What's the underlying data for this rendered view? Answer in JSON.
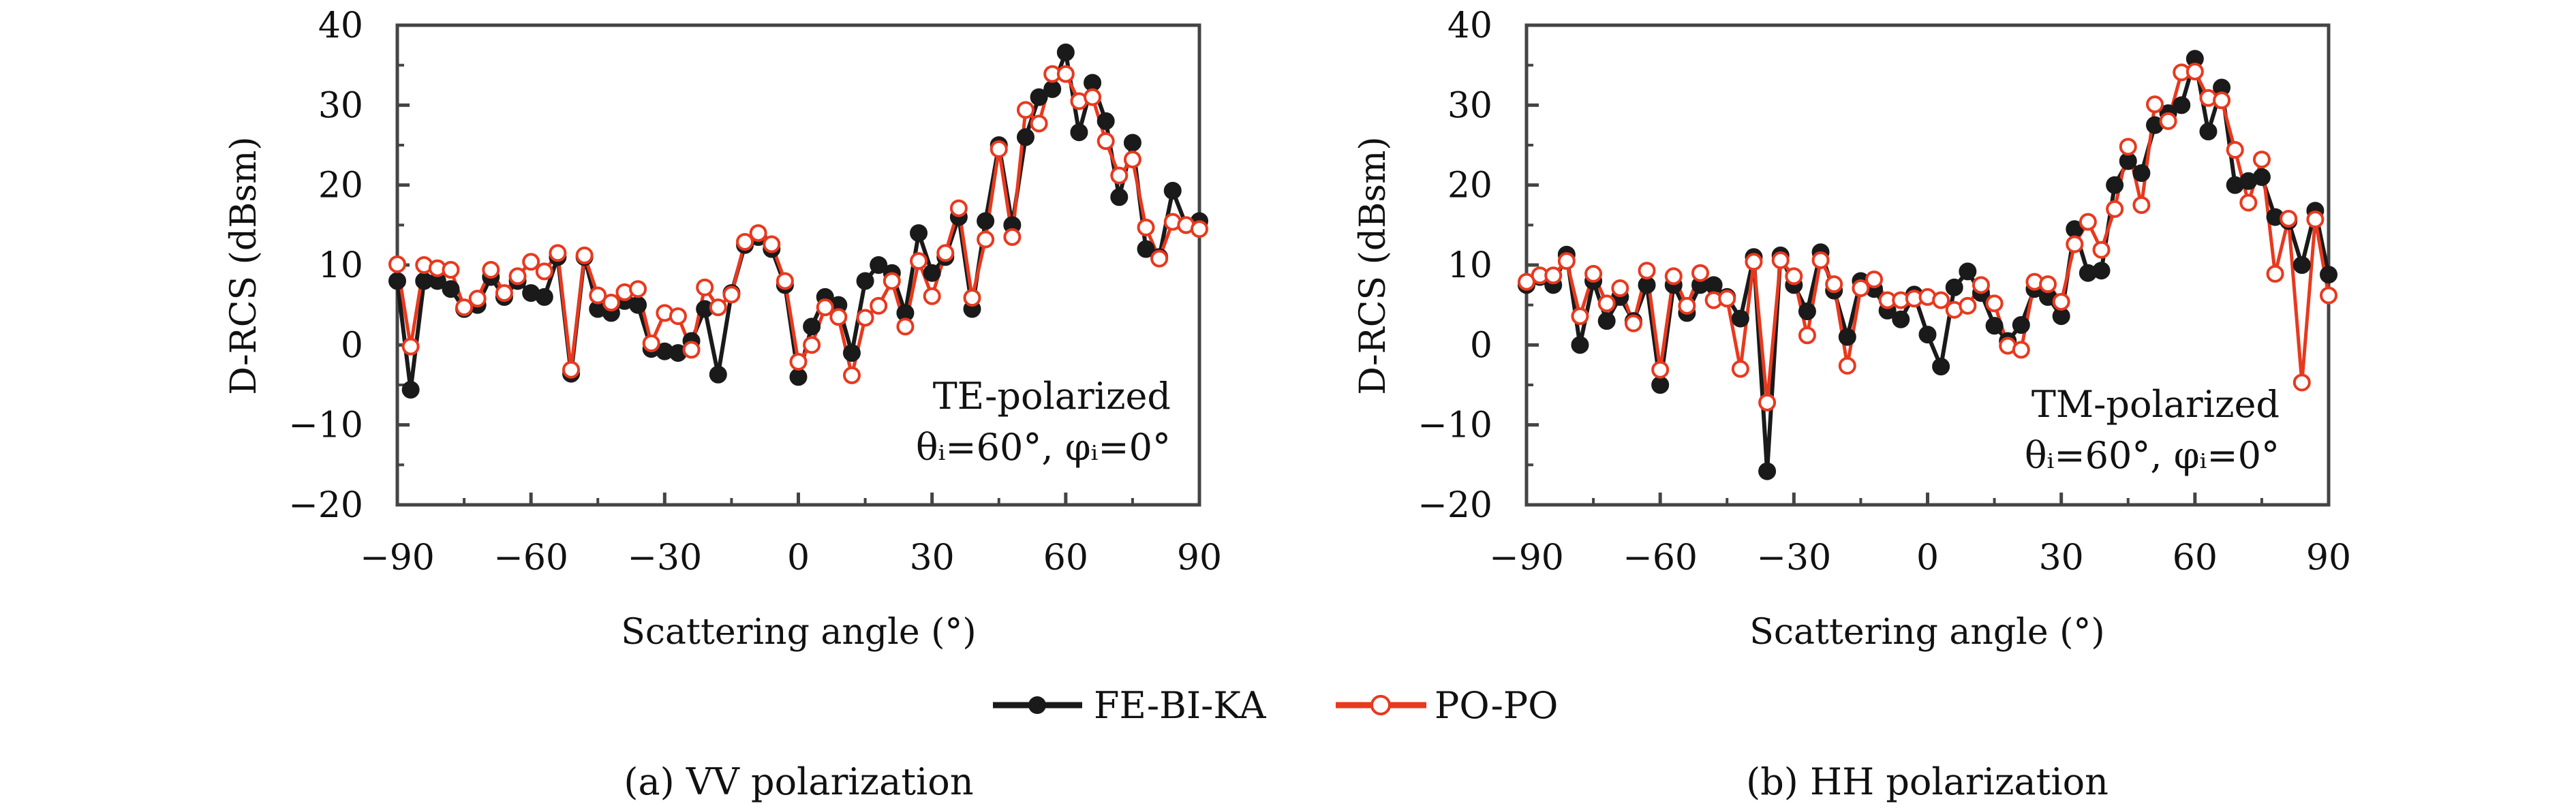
{
  "legend": {
    "items": [
      {
        "label": "FE-BI-KA",
        "color": "#1a1a1a",
        "marker": "filled-circle"
      },
      {
        "label": "PO-PO",
        "color": "#e8391e",
        "marker": "open-circle"
      }
    ]
  },
  "chart_data": [
    {
      "type": "line",
      "caption": "(a) VV polarization",
      "annotation_lines": [
        "TE-polarized",
        "θᵢ=60°, φᵢ=0°"
      ],
      "xlabel": "Scattering angle (°)",
      "ylabel": "D-RCS (dBsm)",
      "xlim": [
        -90,
        90
      ],
      "ylim": [
        -20,
        40
      ],
      "xticks": [
        -90,
        -60,
        -30,
        0,
        30,
        60,
        90
      ],
      "yticks": [
        -20,
        -10,
        0,
        10,
        20,
        30,
        40
      ],
      "grid": false,
      "x": [
        -90,
        -87,
        -84,
        -81,
        -78,
        -75,
        -72,
        -69,
        -66,
        -63,
        -60,
        -57,
        -54,
        -51,
        -48,
        -45,
        -42,
        -39,
        -36,
        -33,
        -30,
        -27,
        -24,
        -21,
        -18,
        -15,
        -12,
        -9,
        -6,
        -3,
        0,
        3,
        6,
        9,
        12,
        15,
        18,
        21,
        24,
        27,
        30,
        33,
        36,
        39,
        42,
        45,
        48,
        51,
        54,
        57,
        60,
        63,
        66,
        69,
        72,
        75,
        78,
        81,
        84,
        87,
        90
      ],
      "series": [
        {
          "name": "FE-BI-KA",
          "values": [
            8,
            -5.6,
            8,
            8,
            7,
            4.5,
            5,
            8.5,
            6,
            8,
            6.5,
            6,
            11,
            -3.6,
            11,
            4.5,
            4,
            5.5,
            5,
            -0.5,
            -0.8,
            -1,
            0.5,
            4.5,
            -3.7,
            6.5,
            12.5,
            13.5,
            12,
            7.5,
            -4,
            2.3,
            6,
            5,
            -1,
            8,
            10,
            9,
            4,
            14,
            9,
            11,
            16,
            4.5,
            15.5,
            25,
            15,
            26,
            31,
            32,
            36.6,
            26.6,
            32.8,
            28,
            18.5,
            25.3,
            12,
            11,
            19.3,
            15,
            15.5
          ]
        },
        {
          "name": "PO-PO",
          "values": [
            10.1,
            -0.2,
            10,
            9.6,
            9.4,
            4.7,
            5.8,
            9.4,
            6.5,
            8.6,
            10.4,
            9.2,
            11.5,
            -3.1,
            11.2,
            6.2,
            5.3,
            6.6,
            7,
            0.2,
            4,
            3.6,
            -0.6,
            7.2,
            4.7,
            6.3,
            12.9,
            14,
            12.6,
            8,
            -2.1,
            0,
            4.7,
            3.5,
            -3.8,
            3.4,
            4.9,
            8,
            2.3,
            10.5,
            6.1,
            11.5,
            17.1,
            5.9,
            13.2,
            24.5,
            13.5,
            29.4,
            27.7,
            33.9,
            33.9,
            30.5,
            31,
            25.5,
            21.2,
            23.2,
            14.7,
            10.8,
            15.4,
            15,
            14.5
          ]
        }
      ]
    },
    {
      "type": "line",
      "caption": "(b) HH polarization",
      "annotation_lines": [
        "TM-polarized",
        "θᵢ=60°, φᵢ=0°"
      ],
      "xlabel": "Scattering angle (°)",
      "ylabel": "D-RCS (dBsm)",
      "xlim": [
        -90,
        90
      ],
      "ylim": [
        -20,
        40
      ],
      "xticks": [
        -90,
        -60,
        -30,
        0,
        30,
        60,
        90
      ],
      "yticks": [
        -20,
        -10,
        0,
        10,
        20,
        30,
        40
      ],
      "grid": false,
      "x": [
        -90,
        -87,
        -84,
        -81,
        -78,
        -75,
        -72,
        -69,
        -66,
        -63,
        -60,
        -57,
        -54,
        -51,
        -48,
        -45,
        -42,
        -39,
        -36,
        -33,
        -30,
        -27,
        -24,
        -21,
        -18,
        -15,
        -12,
        -9,
        -6,
        -3,
        0,
        3,
        6,
        9,
        12,
        15,
        18,
        21,
        24,
        27,
        30,
        33,
        36,
        39,
        42,
        45,
        48,
        51,
        54,
        57,
        60,
        63,
        66,
        69,
        72,
        75,
        78,
        81,
        84,
        87,
        90
      ],
      "series": [
        {
          "name": "FE-BI-KA",
          "values": [
            7.5,
            8.5,
            7.5,
            11.3,
            0,
            8,
            3,
            6,
            3,
            7.5,
            -5,
            7.5,
            4,
            7.5,
            7.5,
            6,
            3.3,
            11,
            -15.8,
            11.2,
            7.5,
            4.2,
            11.6,
            6.8,
            1,
            8,
            7,
            4.3,
            3.2,
            6.3,
            1.3,
            -2.7,
            7.2,
            9.2,
            6.5,
            2.4,
            0.5,
            2.5,
            7,
            6,
            3.6,
            14.5,
            9,
            9.3,
            20,
            23,
            21.5,
            27.5,
            29,
            30,
            35.8,
            26.7,
            32.2,
            20,
            20.5,
            21,
            16,
            15.5,
            10,
            16.8,
            8.8
          ]
        },
        {
          "name": "PO-PO",
          "values": [
            7.9,
            8.7,
            8.7,
            10.5,
            3.6,
            8.9,
            5.2,
            7.1,
            2.7,
            9.3,
            -3.1,
            8.6,
            4.9,
            9,
            5.6,
            5.8,
            -3,
            10.4,
            -7.2,
            10.6,
            8.6,
            1.2,
            10.6,
            7.6,
            -2.6,
            7.1,
            8.2,
            5.6,
            5.6,
            5.8,
            6,
            5.6,
            4.4,
            4.9,
            7.5,
            5.2,
            -0.1,
            -0.6,
            7.9,
            7.6,
            5.4,
            12.6,
            15.4,
            11.9,
            17,
            24.8,
            17.5,
            30.1,
            28,
            34.1,
            34.2,
            30.9,
            30.6,
            24.4,
            17.8,
            23.2,
            8.9,
            15.8,
            -4.7,
            15.7,
            6.2
          ]
        }
      ]
    }
  ]
}
